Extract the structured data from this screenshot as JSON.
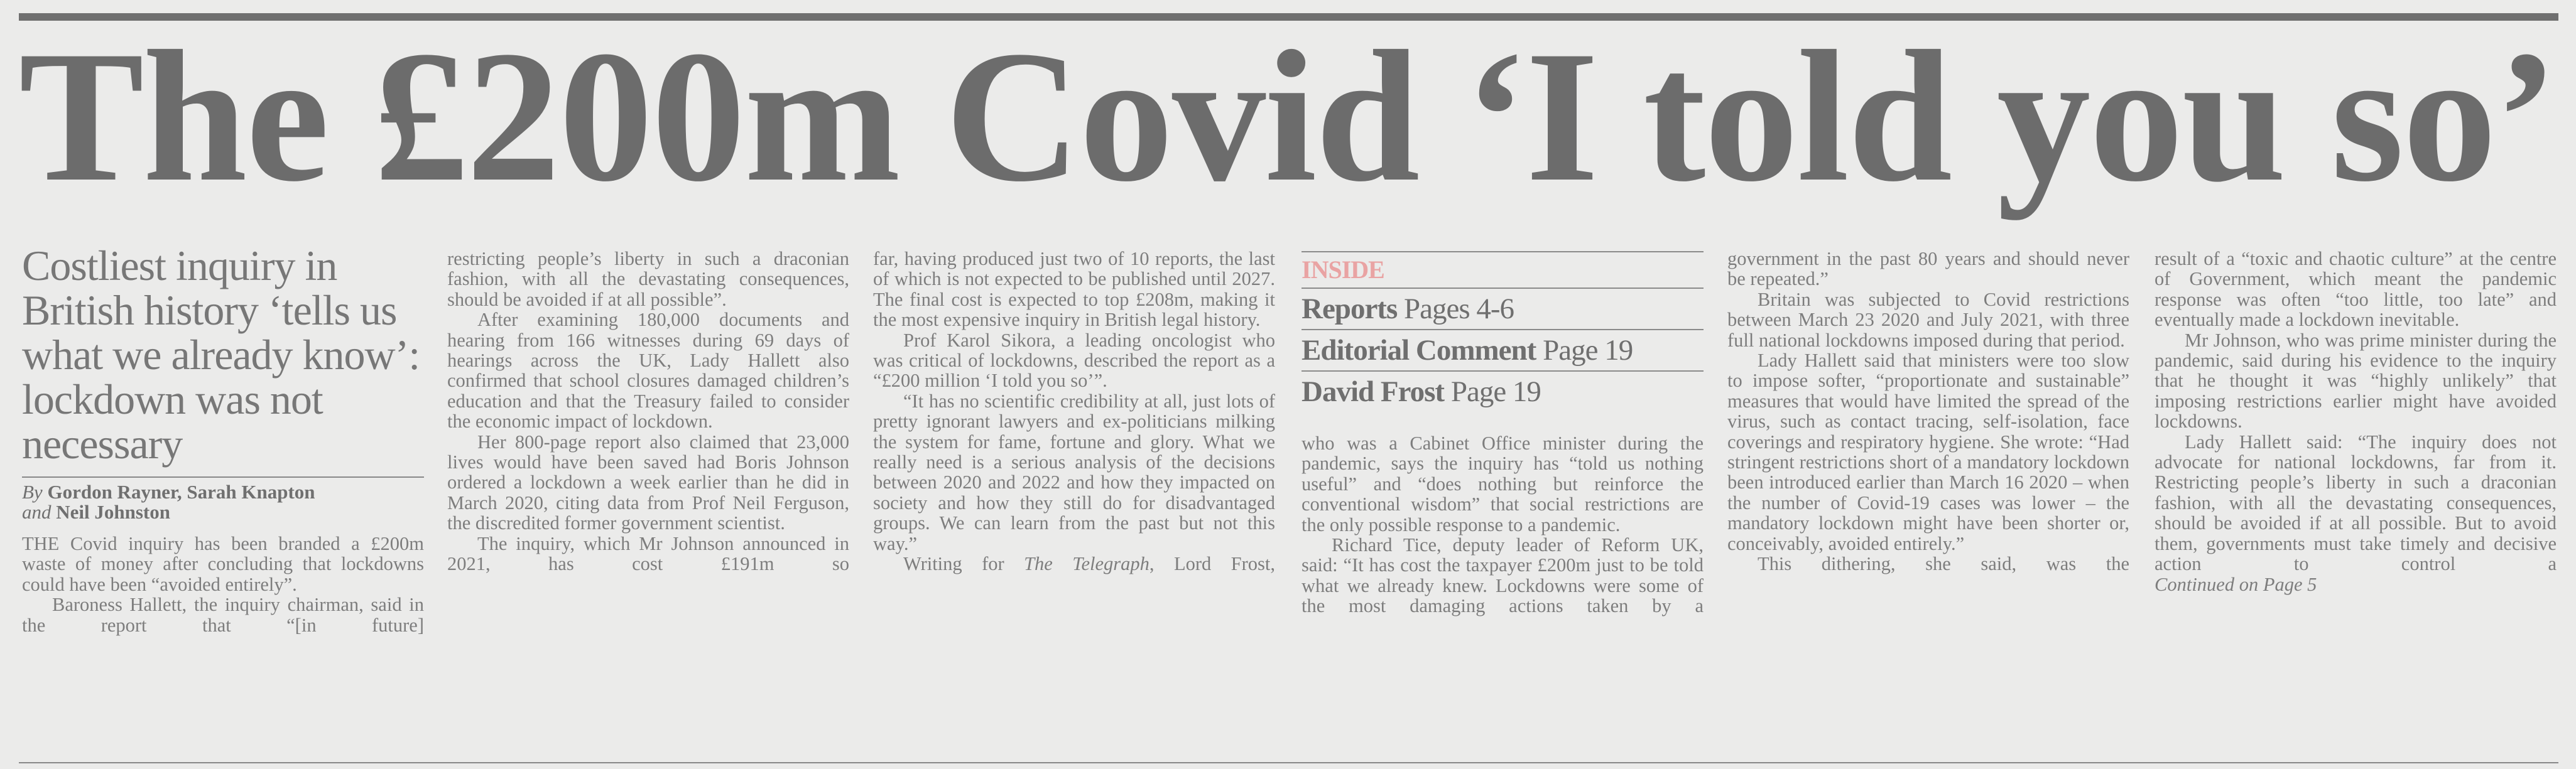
{
  "headline": "The £200m Covid ‘I told you so’",
  "standfirst": "Costliest inquiry in British history ‘tells us what we already know’: lockdown was not necessary",
  "byline": {
    "by": "By",
    "authors_1": "Gordon Rayner, Sarah Knapton",
    "and": "and",
    "authors_2": "Neil Johnston"
  },
  "inside": {
    "label": "INSIDE",
    "items": [
      {
        "title": "Reports",
        "page": "Pages 4-6"
      },
      {
        "title": "Editorial Comment",
        "page": "Page 19"
      },
      {
        "title": "David Frost",
        "page": "Page 19"
      }
    ]
  },
  "columns": {
    "c1": [
      "THE Covid inquiry has been branded a £200m waste of money after concluding that lockdowns could have been “avoided entirely”.",
      "Baroness Hallett, the inquiry chairman, said in the report that “[in future]"
    ],
    "c2": [
      "restricting people’s liberty in such a draconian fashion, with all the devastating consequences, should be avoided if at all possible”.",
      "After examining 180,000 documents and hearing from 166 witnesses during 69 days of hearings across the UK, Lady Hallett also confirmed that school closures damaged children’s education and that the Treasury failed to consider the economic impact of lockdown.",
      "Her 800-page report also claimed that 23,000 lives would have been saved had Boris Johnson ordered a lockdown a week earlier than he did in March 2020, citing data from Prof Neil Ferguson, the discredited former government scientist.",
      "The inquiry, which Mr Johnson announced in 2021, has cost £191m so"
    ],
    "c3": [
      "far, having produced just two of 10 reports, the last of which is not expected to be published until 2027. The final cost is expected to top £208m, making it the most expensive inquiry in British legal history.",
      "Prof Karol Sikora, a leading oncologist who was critical of lockdowns, described the report as a “£200 million ‘I told you so’”.",
      "“It has no scientific credibility at all, just lots of pretty ignorant lawyers and ex-politicians milking the system for fame, fortune and glory. What we really need is a serious analysis of the decisions between 2020 and 2022 and how they impacted on society and how they still do for disadvantaged groups. We can learn from the past but not this way.”"
    ],
    "c3_last": {
      "before": "Writing for ",
      "italic": "The Telegraph",
      "after": ", Lord Frost,"
    },
    "c4": [
      "who was a Cabinet Office minister during the pandemic, says the inquiry has “told us nothing useful” and “does nothing but reinforce the conventional wisdom” that social restrictions are the only possible response to a pandemic.",
      "Richard Tice, deputy leader of Reform UK, said: “It has cost the taxpayer £200m just to be told what we already knew. Lockdowns were some of the most damaging actions taken by a"
    ],
    "c5": [
      "government in the past 80 years and should never be repeated.”",
      "Britain was subjected to Covid restrictions between March 23 2020 and July 2021, with three full national lockdowns imposed during that period.",
      "Lady Hallett said that ministers were too slow to impose softer, “proportionate and sustainable” measures that would have limited the spread of the virus, such as contact tracing, self-isolation, face coverings and respiratory hygiene. She wrote: “Had stringent restrictions short of a mandatory lockdown been introduced earlier than March 16 2020 – when the number of Covid-19 cases was lower – the mandatory lockdown might have been shorter or, conceivably, avoided entirely.”",
      "This dithering, she said, was the"
    ],
    "c6": [
      "result of a “toxic and chaotic culture” at the centre of Government, which meant the pandemic response was often “too little, too late” and eventually made a lockdown inevitable.",
      "Mr Johnson, who was prime minister during the pandemic, said during his evidence to the inquiry that he thought it was “highly unlikely” that imposing restrictions earlier might have avoided lockdowns.",
      "Lady Hallett said: “The inquiry does not advocate for national lockdowns, far from it. Restricting people’s liberty in such a draconian fashion, with all the devastating consequences, should be avoided if at all possible. But to avoid them, governments must take timely and decisive action to control a"
    ],
    "continued": "Continued on Page 5"
  },
  "colors": {
    "ink": "#7b7b7b",
    "headline": "#6c6c6c",
    "inside_label": "#e9a3a3",
    "paper": "#ebebea"
  }
}
